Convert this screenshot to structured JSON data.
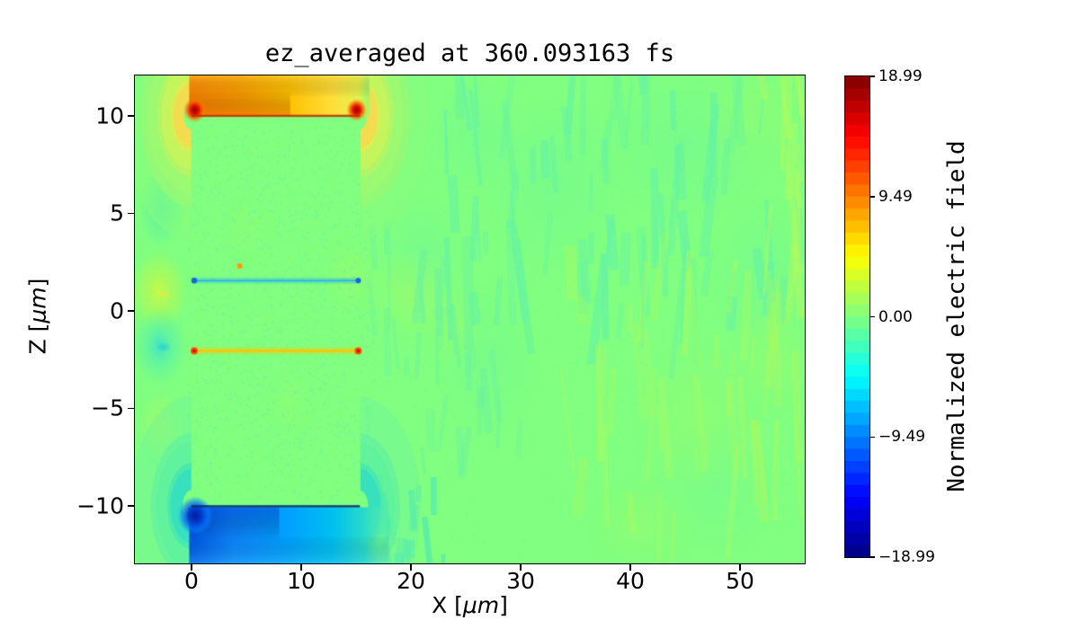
{
  "chart_data": {
    "type": "heatmap",
    "title": "ez_averaged at 360.093163 fs",
    "xlabel": {
      "pre": "X [",
      "unit": "μm",
      "post": "]"
    },
    "ylabel": {
      "pre": "Z [",
      "unit": "μm",
      "post": "]"
    },
    "xlim": [
      -5.16,
      55.9
    ],
    "ylim": [
      -12.95,
      12.07
    ],
    "xticks": {
      "values": [
        0,
        10,
        20,
        30,
        40,
        50
      ],
      "labels": [
        "0",
        "10",
        "20",
        "30",
        "40",
        "50"
      ]
    },
    "yticks": {
      "values": [
        10,
        5,
        0,
        -5,
        -10
      ],
      "labels": [
        "10",
        "5",
        "0",
        "−5",
        "−10"
      ]
    },
    "colorbar": {
      "label": "Normalized electric field",
      "tick_labels": [
        "18.99",
        "9.49",
        "0.00",
        "−9.49",
        "−18.99"
      ],
      "vmin": -18.99,
      "vmax": 18.99,
      "levels": 40,
      "colormap": "jet"
    },
    "render": {
      "seed": 1234567
    },
    "field": {
      "base_level": 0.5,
      "soft_patches": [
        {
          "x": 33,
          "z": 6.5,
          "rx": 7,
          "rz": 4.5,
          "color": "#66f3a4",
          "alpha": 0.3
        },
        {
          "x": 45,
          "z": 8.5,
          "rx": 8,
          "rz": 4.0,
          "color": "#66f3a4",
          "alpha": 0.3
        },
        {
          "x": 52,
          "z": 2.0,
          "rx": 5,
          "rz": 4.0,
          "color": "#66f3a4",
          "alpha": 0.28
        },
        {
          "x": 27,
          "z": -2.5,
          "rx": 5,
          "rz": 4.0,
          "color": "#66f3a4",
          "alpha": 0.25
        },
        {
          "x": 21,
          "z": 3.0,
          "rx": 4,
          "rz": 3.0,
          "color": "#66f3a4",
          "alpha": 0.3
        },
        {
          "x": 48,
          "z": -9.0,
          "rx": 6,
          "rz": 3.5,
          "color": "#66f3a4",
          "alpha": 0.2
        },
        {
          "x": 26,
          "z": 9.0,
          "rx": 4,
          "rz": 3.0,
          "color": "#66f3a4",
          "alpha": 0.3
        },
        {
          "x": 20,
          "z": 0.8,
          "rx": 4,
          "rz": 2.5,
          "color": "#a9fb60",
          "alpha": 0.45
        },
        {
          "x": 14.5,
          "z": 1.8,
          "rx": 3,
          "rz": 2.0,
          "color": "#a9fb60",
          "alpha": 0.35
        },
        {
          "x": 24,
          "z": -0.8,
          "rx": 3,
          "rz": 2.0,
          "color": "#a9fb60",
          "alpha": 0.3
        },
        {
          "x": 46,
          "z": -5.5,
          "rx": 6,
          "rz": 4.0,
          "color": "#a9fb60",
          "alpha": 0.3
        },
        {
          "x": 53,
          "z": -2.5,
          "rx": 4,
          "rz": 3.0,
          "color": "#a9fb60",
          "alpha": 0.3
        },
        {
          "x": 51,
          "z": 10.0,
          "rx": 5,
          "rz": 3.0,
          "color": "#a9fb60",
          "alpha": 0.25
        },
        {
          "x": 9,
          "z": -4.7,
          "rx": 2.5,
          "rz": 1.8,
          "color": "#a9fb60",
          "alpha": 0.22
        },
        {
          "x": 5,
          "z": 4.2,
          "rx": 2.5,
          "rz": 1.8,
          "color": "#a9fb60",
          "alpha": 0.2
        },
        {
          "x": 41,
          "z": -11.0,
          "rx": 5,
          "rz": 2.5,
          "color": "#a9fb60",
          "alpha": 0.3
        }
      ],
      "streaks": [
        {
          "count": 70,
          "x": [
            20,
            55.7
          ],
          "z": [
            -1,
            12
          ],
          "w": [
            0.25,
            0.9
          ],
          "h": [
            1.5,
            6
          ],
          "color": "#66f3a4",
          "alpha": [
            0.3,
            0.7
          ]
        },
        {
          "count": 35,
          "x": [
            16,
            30
          ],
          "z": [
            -8,
            4
          ],
          "w": [
            0.25,
            0.8
          ],
          "h": [
            1,
            4
          ],
          "color": "#6af2a0",
          "alpha": [
            0.25,
            0.55
          ]
        },
        {
          "count": 45,
          "x": [
            34,
            55.7
          ],
          "z": [
            -13,
            2
          ],
          "w": [
            0.3,
            1.0
          ],
          "h": [
            1.5,
            6
          ],
          "color": "#a9fb60",
          "alpha": [
            0.22,
            0.45
          ]
        },
        {
          "count": 20,
          "x": [
            15.5,
            23
          ],
          "z": [
            -13,
            -9.3
          ],
          "w": [
            0.3,
            0.9
          ],
          "h": [
            0.8,
            2.5
          ],
          "color": "#40e4c0",
          "alpha": [
            0.35,
            0.7
          ]
        },
        {
          "count": 14,
          "x": [
            52,
            55.8
          ],
          "z": [
            0,
            12
          ],
          "w": [
            0.3,
            0.8
          ],
          "h": [
            2,
            6
          ],
          "color": "#b4fb5c",
          "alpha": [
            0.3,
            0.5
          ]
        }
      ],
      "speckles": [
        {
          "count": 2600,
          "x": [
            -0.3,
            16.6
          ],
          "z": [
            -9.6,
            9.6
          ],
          "size": 2.0,
          "alpha": 0.5,
          "colors": [
            "#8dff6a",
            "#6cf898",
            "#9efc5e",
            "#70f0a8"
          ]
        },
        {
          "count": 1700,
          "x": [
            -5.1,
            55.8
          ],
          "z": [
            -12.9,
            12
          ],
          "size": 1.6,
          "alpha": 0.28,
          "colors": [
            "#8dff6a",
            "#6cf898",
            "#9efc5e",
            "#70f0a8"
          ]
        }
      ],
      "blobs": [
        {
          "x": -2.7,
          "z": 5.3,
          "rx": 2.1,
          "rz": 2.0,
          "stops": [
            [
              0,
              "rgba(82,238,170,0.85)"
            ],
            [
              0.6,
              "rgba(95,243,160,0.5)"
            ],
            [
              1,
              "rgba(95,243,160,0)"
            ]
          ]
        },
        {
          "x": -3.0,
          "z": 1.0,
          "rx": 2.7,
          "rz": 2.1,
          "stops": [
            [
              0,
              "rgba(200,250,70,0.95)"
            ],
            [
              0.55,
              "rgba(178,250,85,0.6)"
            ],
            [
              1,
              "rgba(178,250,85,0)"
            ]
          ],
          "core": {
            "x": -2.45,
            "z": 0.85,
            "r": 0.45,
            "color": "rgba(255,225,50,0.95)"
          }
        },
        {
          "x": -2.9,
          "z": -1.8,
          "rx": 2.5,
          "rz": 2.0,
          "stops": [
            [
              0,
              "rgba(60,225,205,0.9)"
            ],
            [
              0.5,
              "rgba(85,240,175,0.55)"
            ],
            [
              1,
              "rgba(85,240,175,0)"
            ]
          ],
          "core": {
            "x": -2.55,
            "z": -1.85,
            "r": 0.7,
            "color": "rgba(40,208,212,0.95)"
          }
        },
        {
          "x": -2.8,
          "z": -6.0,
          "rx": 2.2,
          "rz": 1.9,
          "stops": [
            [
              0,
              "rgba(185,248,90,0.55)"
            ],
            [
              1,
              "rgba(185,248,90,0)"
            ]
          ]
        }
      ],
      "fringes": [
        {
          "cx": 0,
          "cz": 10,
          "side": "left",
          "rings": [
            {
              "r": 1.3,
              "w": 1.2,
              "color": "#ffd84a",
              "alpha": 0.9
            },
            {
              "r": 2.4,
              "w": 1.5,
              "color": "#d4f254",
              "alpha": 0.8
            },
            {
              "r": 3.7,
              "w": 1.9,
              "color": "#a8f76c",
              "alpha": 0.7
            },
            {
              "r": 5.2,
              "w": 2.3,
              "color": "#8afb7c",
              "alpha": 0.5
            }
          ]
        },
        {
          "cx": 15.3,
          "cz": 10,
          "side": "right",
          "rings": [
            {
              "r": 1.3,
              "w": 1.2,
              "color": "#ffd84a",
              "alpha": 0.9
            },
            {
              "r": 2.4,
              "w": 1.5,
              "color": "#d4f254",
              "alpha": 0.8
            },
            {
              "r": 3.7,
              "w": 1.9,
              "color": "#a8f76c",
              "alpha": 0.7
            },
            {
              "r": 5.2,
              "w": 2.3,
              "color": "#8afb7c",
              "alpha": 0.5
            }
          ]
        },
        {
          "cx": 0,
          "cz": -10,
          "side": "left",
          "rings": [
            {
              "r": 1.5,
              "w": 1.4,
              "color": "#2bdcc8",
              "alpha": 0.85
            },
            {
              "r": 2.8,
              "w": 1.8,
              "color": "#52eda8",
              "alpha": 0.7
            },
            {
              "r": 4.4,
              "w": 2.4,
              "color": "#6ff598",
              "alpha": 0.5
            }
          ]
        },
        {
          "cx": 15.3,
          "cz": -10,
          "side": "right",
          "rings": [
            {
              "r": 1.5,
              "w": 1.4,
              "color": "#2bdcc8",
              "alpha": 0.85
            },
            {
              "r": 2.8,
              "w": 1.8,
              "color": "#52eda8",
              "alpha": 0.7
            },
            {
              "r": 4.4,
              "w": 2.4,
              "color": "#6ff598",
              "alpha": 0.5
            }
          ]
        }
      ],
      "top_region": {
        "x0": -0.2,
        "x1": 16.2,
        "z": 10.02,
        "stops": [
          [
            0,
            "#ff8800"
          ],
          [
            0.3,
            "#ffa000"
          ],
          [
            0.55,
            "#ffc000"
          ],
          [
            0.8,
            "#ffdf3c"
          ],
          [
            0.94,
            "#e4f24e"
          ],
          [
            1,
            "#9cf86e"
          ]
        ],
        "dark": {
          "x0": -0.2,
          "x1": 9,
          "color": "rgba(245,110,0,0.5)",
          "extent": 0.6
        },
        "light": {
          "color": "rgba(255,220,70,0.35)",
          "extent": 0.55
        }
      },
      "bottom_region": {
        "x0": -0.2,
        "x1": 18.0,
        "z": -10.07,
        "stops": [
          [
            0,
            "#0058e8"
          ],
          [
            0.22,
            "#0d86ff"
          ],
          [
            0.5,
            "#00a2ff"
          ],
          [
            0.72,
            "#00c0f0"
          ],
          [
            0.88,
            "#2adcc8"
          ],
          [
            1,
            "rgba(110,244,150,0)"
          ]
        ],
        "dark": {
          "x0": -0.2,
          "x1": 8,
          "color": "rgba(0,70,220,0.5)",
          "extent": 0.6
        },
        "light": {
          "color": "rgba(80,220,255,0.28)",
          "extent": 0.5
        }
      },
      "hotspots": [
        {
          "x": 0.3,
          "z": 10.3,
          "r": 1.05,
          "stops": [
            [
              0,
              "#9c0000"
            ],
            [
              0.35,
              "#dd1000"
            ],
            [
              0.65,
              "rgba(255,90,0,0.8)"
            ],
            [
              1,
              "rgba(255,150,0,0)"
            ]
          ]
        },
        {
          "x": 15.05,
          "z": 10.3,
          "r": 0.95,
          "stops": [
            [
              0,
              "#9c0000"
            ],
            [
              0.35,
              "#dd1000"
            ],
            [
              0.65,
              "rgba(255,90,0,0.8)"
            ],
            [
              1,
              "rgba(255,150,0,0)"
            ]
          ]
        },
        {
          "x": 0.35,
          "z": -10.5,
          "r": 1.6,
          "stops": [
            [
              0,
              "#001c9c"
            ],
            [
              0.4,
              "#0040d0"
            ],
            [
              0.75,
              "rgba(10,120,255,0.6)"
            ],
            [
              1,
              "rgba(10,140,255,0)"
            ]
          ]
        }
      ],
      "plates": [
        {
          "x0": 0,
          "x1": 15.35,
          "z": 10.0,
          "color": "rgba(190,50,0,0.9)",
          "h": 2.4
        },
        {
          "x0": 0,
          "x1": 15.35,
          "z": -10.02,
          "color": "rgba(0,40,120,0.9)",
          "h": 2.4
        }
      ],
      "lines": [
        {
          "x0": 0.1,
          "x1": 15.3,
          "z": 1.55,
          "color": "#2eb6e8",
          "halo": "rgba(46,182,232,0.3)",
          "w": 2.0,
          "tips": [
            {
              "x": 0.25,
              "r": 3.2,
              "color": "#1668d4"
            },
            {
              "x": 15.2,
              "r": 3.0,
              "color": "#1668d4"
            }
          ]
        },
        {
          "x0": 0.1,
          "x1": 15.3,
          "z": -2.05,
          "color": "#ffc400",
          "halo": "rgba(255,196,0,0.3)",
          "w": 2.4,
          "tips": [
            {
              "x": 0.25,
              "r": 4.0,
              "color": "#ff5200",
              "core": "#cc1200"
            },
            {
              "x": 15.2,
              "r": 4.0,
              "color": "#ff5200",
              "core": "#cc1200"
            }
          ]
        }
      ],
      "speck": {
        "x": 4.4,
        "z": 2.3,
        "r": 3,
        "color": "#ff9800"
      }
    }
  }
}
